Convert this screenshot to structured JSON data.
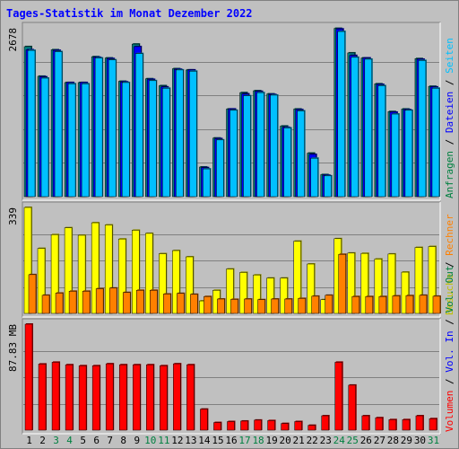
{
  "chart_data": {
    "type": "bar",
    "title": "Tages-Statistik im Monat Dezember 2022",
    "categories": [
      "1",
      "2",
      "3",
      "4",
      "5",
      "6",
      "7",
      "8",
      "9",
      "10",
      "11",
      "12",
      "13",
      "14",
      "15",
      "16",
      "17",
      "18",
      "19",
      "20",
      "21",
      "22",
      "23",
      "24",
      "25",
      "26",
      "27",
      "28",
      "29",
      "30",
      "31"
    ],
    "weekend_days": [
      "3",
      "4",
      "10",
      "11",
      "17",
      "18",
      "24",
      "25",
      "31"
    ],
    "panels": [
      {
        "id": "top",
        "max_label": "2678",
        "ylim": [
          0,
          2678
        ],
        "right_label_parts": [
          {
            "text": "Anfragen",
            "color": "#008040"
          },
          {
            "text": " / ",
            "color": "#000000"
          },
          {
            "text": "Dateien",
            "color": "#0000ff"
          },
          {
            "text": " / ",
            "color": "#000000"
          },
          {
            "text": "Seiten",
            "color": "#00c0ff"
          }
        ],
        "series": [
          {
            "name": "Anfragen",
            "color": "#008080",
            "values": [
              2380,
              1910,
              2330,
              1810,
              1810,
              2220,
              2200,
              1830,
              2420,
              1870,
              1760,
              2030,
              2010,
              470,
              930,
              1390,
              1650,
              1680,
              1630,
              1120,
              1390,
              690,
              350,
              2670,
              2280,
              2200,
              1790,
              1350,
              1390,
              2190,
              1750
            ]
          },
          {
            "name": "Dateien",
            "color": "#0000ff",
            "values": [
              2330,
              1900,
              2320,
              1810,
              1810,
              2210,
              2190,
              1820,
              2380,
              1860,
              1740,
              2020,
              2010,
              460,
              920,
              1390,
              1630,
              1670,
              1620,
              1100,
              1380,
              670,
              340,
              2660,
              2240,
              2200,
              1780,
              1340,
              1380,
              2180,
              1740
            ]
          },
          {
            "name": "Seiten",
            "color": "#00c0ff",
            "values": [
              2320,
              1880,
              2300,
              1790,
              1790,
              2200,
              2170,
              1810,
              2270,
              1840,
              1720,
              2010,
              1990,
              440,
              900,
              1370,
              1600,
              1650,
              1610,
              1090,
              1360,
              610,
              330,
              2620,
              2210,
              2180,
              1760,
              1310,
              1370,
              2160,
              1720
            ]
          }
        ]
      },
      {
        "id": "middle",
        "max_label": "339",
        "ylim": [
          0,
          339
        ],
        "right_label_parts": [
          {
            "text": "Besuche",
            "color": "#c0c000"
          },
          {
            "text": " / ",
            "color": "#000000"
          },
          {
            "text": "Rechner",
            "color": "#ff8000"
          }
        ],
        "series": [
          {
            "name": "Besuche",
            "color": "#ffff00",
            "values": [
              339,
              208,
              252,
              274,
              250,
              290,
              283,
              238,
              266,
              256,
              191,
              201,
              181,
              40,
              74,
              142,
              131,
              123,
              113,
              113,
              231,
              158,
              44,
              239,
              193,
              192,
              174,
              190,
              132,
              211,
              214
            ]
          },
          {
            "name": "Rechner",
            "color": "#ff8000",
            "values": [
              124,
              58,
              65,
              71,
              71,
              79,
              81,
              67,
              74,
              74,
              62,
              64,
              61,
              54,
              46,
              45,
              46,
              44,
              46,
              46,
              48,
              55,
              58,
              189,
              54,
              54,
              54,
              56,
              57,
              58,
              55
            ]
          }
        ]
      },
      {
        "id": "bottom",
        "max_label": "87.83 MB",
        "ylim": [
          0,
          87.83
        ],
        "right_label_parts": [
          {
            "text": "Volumen",
            "color": "#ff0000"
          },
          {
            "text": " / ",
            "color": "#000000"
          },
          {
            "text": "Vol. In",
            "color": "#0000ff"
          },
          {
            "text": " / ",
            "color": "#000000"
          },
          {
            "text": "Vol. Out",
            "color": "#008040"
          }
        ],
        "series": [
          {
            "name": "Volumen",
            "color": "#ff0000",
            "values": [
              87.83,
              54.8,
              56.3,
              54.2,
              53.4,
              53.4,
              55.0,
              54.2,
              54.2,
              54.2,
              53.4,
              55.0,
              54.2,
              17.4,
              6.3,
              7.1,
              7.5,
              8.3,
              7.9,
              5.5,
              7.1,
              4.0,
              11.9,
              56.3,
              37.3,
              11.9,
              10.3,
              8.7,
              8.7,
              11.9,
              9.5
            ]
          }
        ]
      }
    ]
  }
}
